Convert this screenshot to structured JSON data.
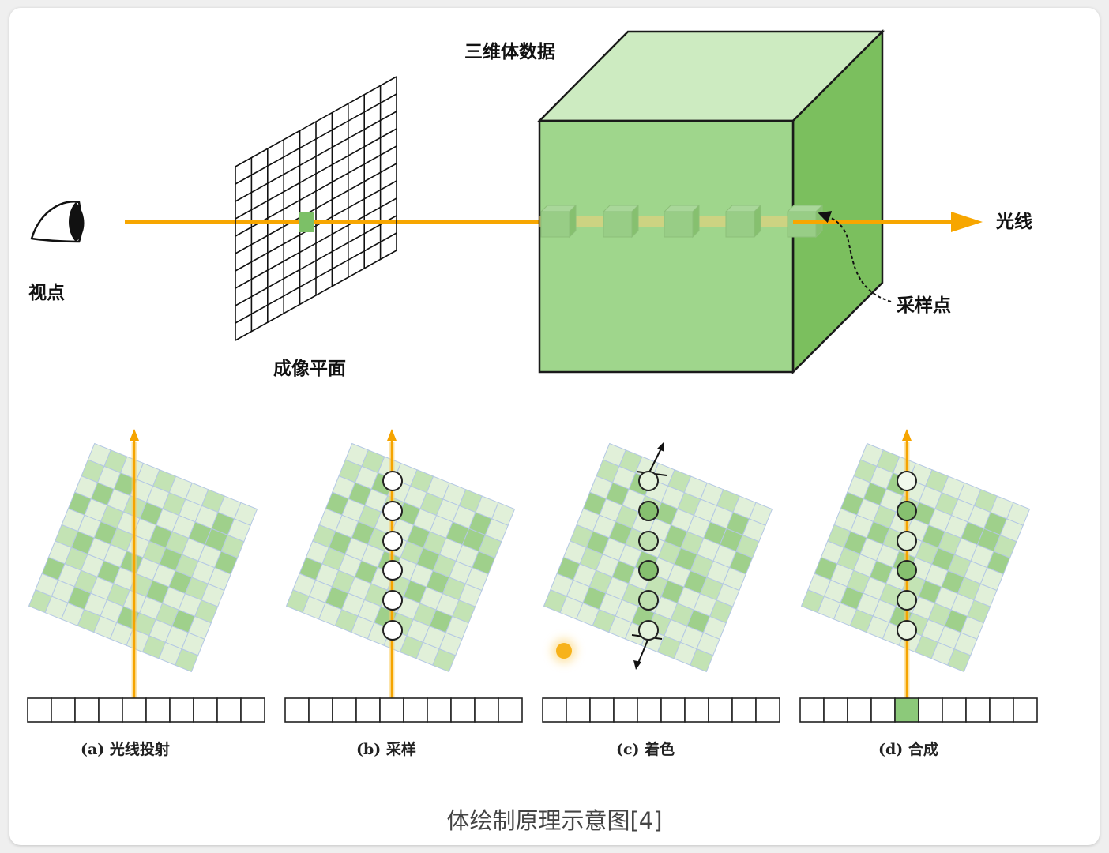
{
  "labels": {
    "volume_data": "三维体数据",
    "ray": "光线",
    "viewpoint": "视点",
    "sample_point": "采样点",
    "image_plane": "成像平面"
  },
  "panels": [
    {
      "label": "(a) 光线投射"
    },
    {
      "label": "(b) 采样"
    },
    {
      "label": "(c) 着色"
    },
    {
      "label": "(d) 合成"
    }
  ],
  "caption": "体绘制原理示意图[4]",
  "colors": {
    "ray": "#f7a600",
    "cube_front": "#9fd68c",
    "cube_top": "#cdebc1",
    "cube_side": "#7bbf5e",
    "grid_light": "#e1f0d9",
    "grid_mid": "#c3e3b4",
    "grid_dark": "#9fd08b",
    "grid_line": "#b4c8e4"
  },
  "icons": {
    "eye": "eye-icon",
    "light": "light-source-icon"
  }
}
